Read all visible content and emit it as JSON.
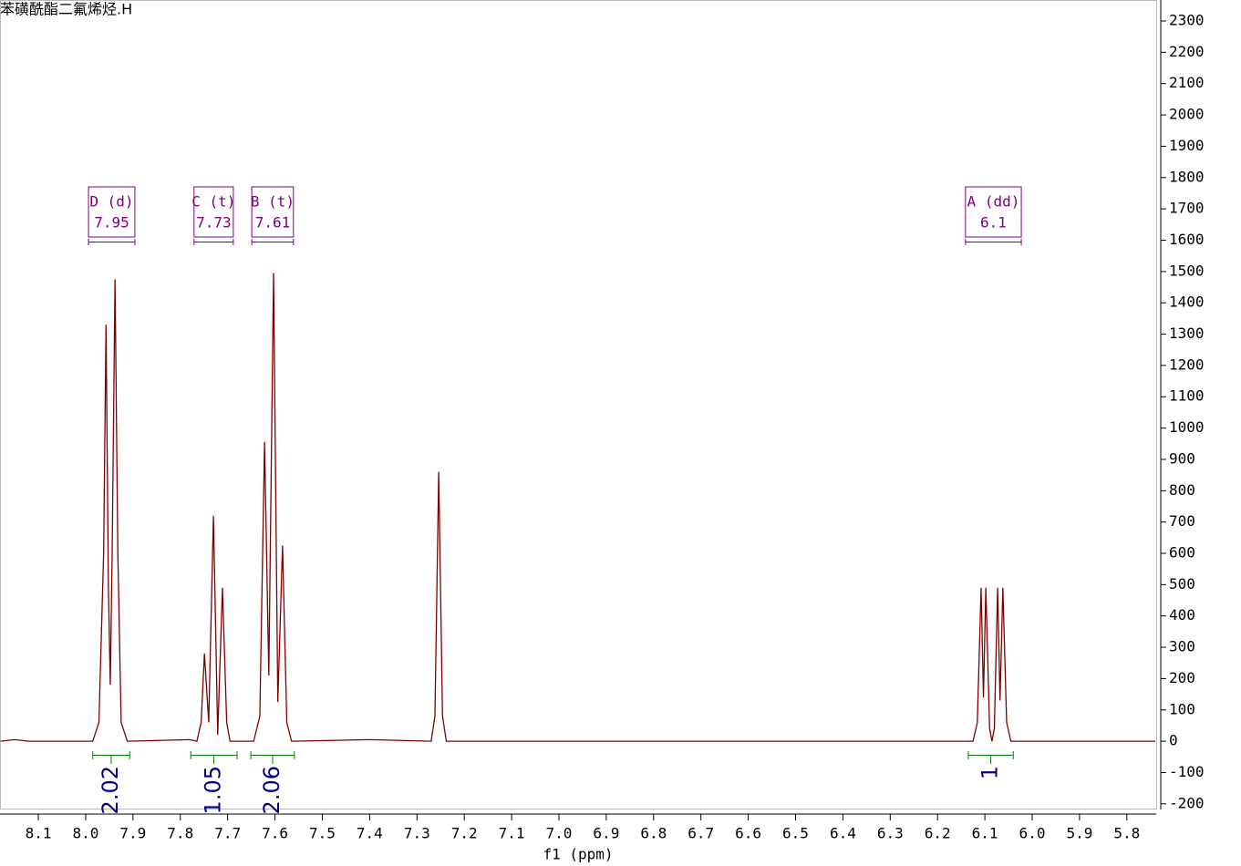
{
  "chart_data": {
    "type": "line",
    "title": "苯磺酰酯二氟烯烃.H",
    "x_label": "f1 (ppm)",
    "x": [
      8.18,
      8.15,
      8.12,
      7.985,
      7.972,
      7.962,
      7.957,
      7.952,
      7.948,
      7.944,
      7.938,
      7.932,
      7.925,
      7.912,
      7.78,
      7.765,
      7.756,
      7.749,
      7.74,
      7.73,
      7.721,
      7.711,
      7.702,
      7.695,
      7.645,
      7.632,
      7.622,
      7.613,
      7.603,
      7.594,
      7.584,
      7.575,
      7.565,
      7.4,
      7.27,
      7.262,
      7.254,
      7.246,
      7.238,
      6.125,
      6.116,
      6.108,
      6.103,
      6.098,
      6.09,
      6.085,
      6.08,
      6.073,
      6.068,
      6.062,
      6.054,
      6.045,
      5.74
    ],
    "series": [
      {
        "color": "#7f0000",
        "values": [
          0,
          5,
          0,
          0,
          60,
          600,
          1330,
          500,
          180,
          600,
          1475,
          600,
          60,
          0,
          5,
          0,
          60,
          280,
          60,
          720,
          20,
          490,
          60,
          0,
          0,
          80,
          955,
          210,
          1495,
          125,
          625,
          60,
          0,
          5,
          0,
          80,
          860,
          80,
          0,
          0,
          60,
          490,
          140,
          490,
          40,
          0,
          40,
          490,
          130,
          490,
          60,
          0,
          0
        ]
      }
    ],
    "xlim": [
      8.181,
      5.738
    ],
    "ylim": [
      -218,
      2367
    ],
    "xticks": [
      8.1,
      {
        "value": 8,
        "label": "8.0"
      },
      7.9,
      7.8,
      7.7,
      7.6,
      7.5,
      7.4,
      7.3,
      7.2,
      7.1,
      {
        "value": 7,
        "label": "7.0"
      },
      6.9,
      6.8,
      6.7,
      6.6,
      6.5,
      6.4,
      6.3,
      6.2,
      6.1,
      {
        "value": 6,
        "label": "6.0"
      },
      5.9,
      5.8
    ],
    "yticks": [
      -200,
      -100,
      0,
      100,
      200,
      300,
      400,
      500,
      600,
      700,
      800,
      900,
      1000,
      1100,
      1200,
      1300,
      1400,
      1500,
      1600,
      1700,
      1800,
      1900,
      2000,
      2100,
      2200,
      2300
    ],
    "multiplets": [
      {
        "label": "D (d)",
        "shift": 7.95,
        "range": [
          7.994,
          7.896
        ]
      },
      {
        "label": "C (t)",
        "shift": 7.73,
        "range": [
          7.771,
          7.688
        ]
      },
      {
        "label": "B (t)",
        "shift": 7.61,
        "range": [
          7.649,
          7.561
        ]
      },
      {
        "label": "A (dd)",
        "shift": 6.1,
        "range": [
          6.141,
          6.023
        ]
      }
    ],
    "integrals": [
      {
        "value": 2.02,
        "range": [
          7.985,
          7.907
        ]
      },
      {
        "value": 1.05,
        "range": [
          7.778,
          7.68
        ]
      },
      {
        "value": 2.06,
        "range": [
          7.651,
          7.559
        ]
      },
      {
        "value": 1.0,
        "range": [
          6.135,
          6.04
        ]
      }
    ]
  }
}
